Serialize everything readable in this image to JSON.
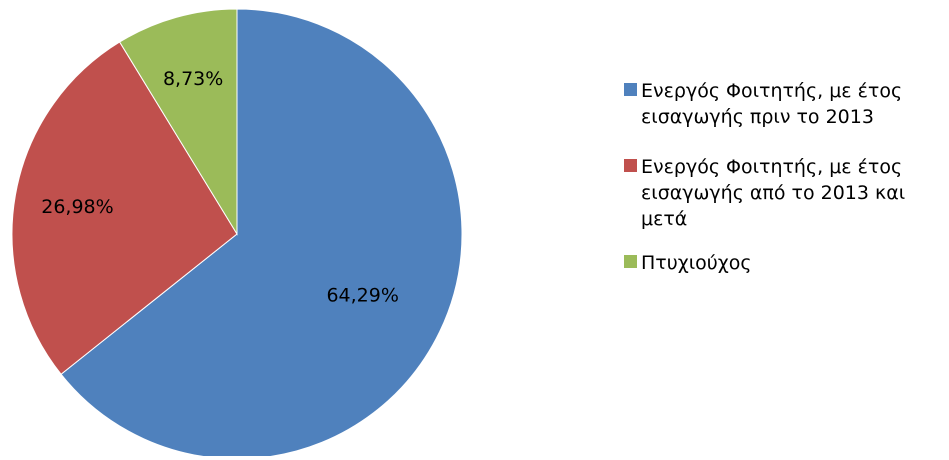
{
  "chart_data": {
    "type": "pie",
    "title": "",
    "start_angle_deg": 0,
    "direction": "clockwise",
    "legend_position": "right",
    "slices": [
      {
        "label": "Ενεργός Φοιτητής, με έτος εισαγωγής πριν το 2013",
        "value": 64.29,
        "data_label": "64,29%",
        "color": "#4F81BD"
      },
      {
        "label": "Ενεργός Φοιτητής, με έτος εισαγωγής από το 2013 και μετά",
        "value": 26.98,
        "data_label": "26,98%",
        "color": "#C0504D"
      },
      {
        "label": "Πτυχιούχος",
        "value": 8.73,
        "data_label": "8,73%",
        "color": "#9BBB59"
      }
    ]
  }
}
